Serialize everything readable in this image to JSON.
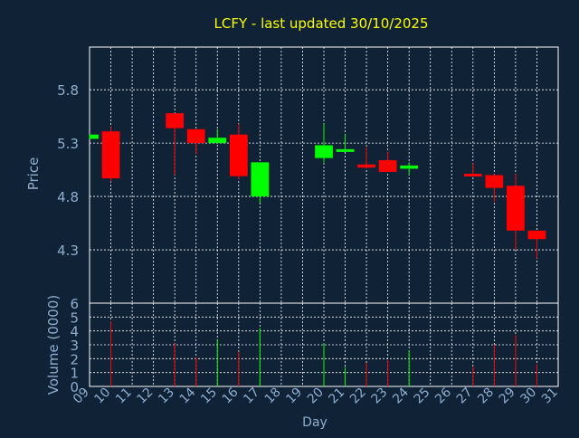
{
  "chart_data": {
    "type": "candlestick",
    "title": "LCFY - last updated 30/10/2025",
    "colors": {
      "background": "#0f2236",
      "title": "#ffff00",
      "axis_text": "#8eaed0",
      "grid": "#ffffff",
      "up": "#00ff00",
      "down": "#ff0000"
    },
    "price_panel": {
      "ylabel": "Price",
      "yticks": [
        4.3,
        4.8,
        5.3,
        5.8
      ],
      "ytick_labels": [
        "4.3",
        "4.8",
        "5.3",
        "5.8"
      ],
      "ylim": [
        3.8,
        6.2
      ],
      "grid": true
    },
    "volume_panel": {
      "ylabel": "Volume (0000)",
      "yticks": [
        0,
        1,
        2,
        3,
        4,
        5,
        6
      ],
      "ytick_labels": [
        "0",
        "1",
        "2",
        "3",
        "4",
        "5",
        "6"
      ],
      "ylim": [
        0,
        6
      ],
      "grid": true
    },
    "xaxis": {
      "label": "Day",
      "xlim": [
        9,
        31
      ],
      "ticks": [
        9,
        10,
        11,
        12,
        13,
        14,
        15,
        16,
        17,
        18,
        19,
        20,
        21,
        22,
        23,
        24,
        25,
        26,
        27,
        28,
        29,
        30,
        31
      ],
      "tick_labels": [
        "09",
        "10",
        "11",
        "12",
        "13",
        "14",
        "15",
        "16",
        "17",
        "18",
        "19",
        "20",
        "21",
        "22",
        "23",
        "24",
        "25",
        "26",
        "27",
        "28",
        "29",
        "30",
        "31"
      ]
    },
    "candles": [
      {
        "day": 9,
        "open": 5.34,
        "high": 5.38,
        "low": 5.34,
        "close": 5.38,
        "volume": 0
      },
      {
        "day": 10,
        "open": 5.41,
        "high": 5.45,
        "low": 4.94,
        "close": 4.97,
        "volume": 4.7
      },
      {
        "day": 13,
        "open": 5.58,
        "high": 5.58,
        "low": 5.0,
        "close": 5.44,
        "volume": 3.1
      },
      {
        "day": 14,
        "open": 5.43,
        "high": 5.43,
        "low": 5.2,
        "close": 5.3,
        "volume": 2.1
      },
      {
        "day": 15,
        "open": 5.3,
        "high": 5.43,
        "low": 5.3,
        "close": 5.35,
        "volume": 3.4
      },
      {
        "day": 16,
        "open": 5.38,
        "high": 5.48,
        "low": 4.96,
        "close": 4.99,
        "volume": 2.5
      },
      {
        "day": 17,
        "open": 4.8,
        "high": 5.12,
        "low": 4.74,
        "close": 5.12,
        "volume": 4.2
      },
      {
        "day": 20,
        "open": 5.16,
        "high": 5.48,
        "low": 5.12,
        "close": 5.28,
        "volume": 3.1
      },
      {
        "day": 21,
        "open": 5.22,
        "high": 5.38,
        "low": 5.22,
        "close": 5.24,
        "volume": 1.4
      },
      {
        "day": 22,
        "open": 5.1,
        "high": 5.26,
        "low": 5.06,
        "close": 5.07,
        "volume": 1.7
      },
      {
        "day": 23,
        "open": 5.14,
        "high": 5.22,
        "low": 5.03,
        "close": 5.03,
        "volume": 1.9
      },
      {
        "day": 24,
        "open": 5.06,
        "high": 5.12,
        "low": 5.0,
        "close": 5.09,
        "volume": 2.6
      },
      {
        "day": 27,
        "open": 5.01,
        "high": 5.11,
        "low": 4.99,
        "close": 4.99,
        "volume": 1.4
      },
      {
        "day": 28,
        "open": 5.0,
        "high": 5.01,
        "low": 4.75,
        "close": 4.88,
        "volume": 3.0
      },
      {
        "day": 29,
        "open": 4.9,
        "high": 5.01,
        "low": 4.3,
        "close": 4.48,
        "volume": 3.7
      },
      {
        "day": 30,
        "open": 4.48,
        "high": 4.48,
        "low": 4.22,
        "close": 4.4,
        "volume": 1.6
      }
    ]
  }
}
